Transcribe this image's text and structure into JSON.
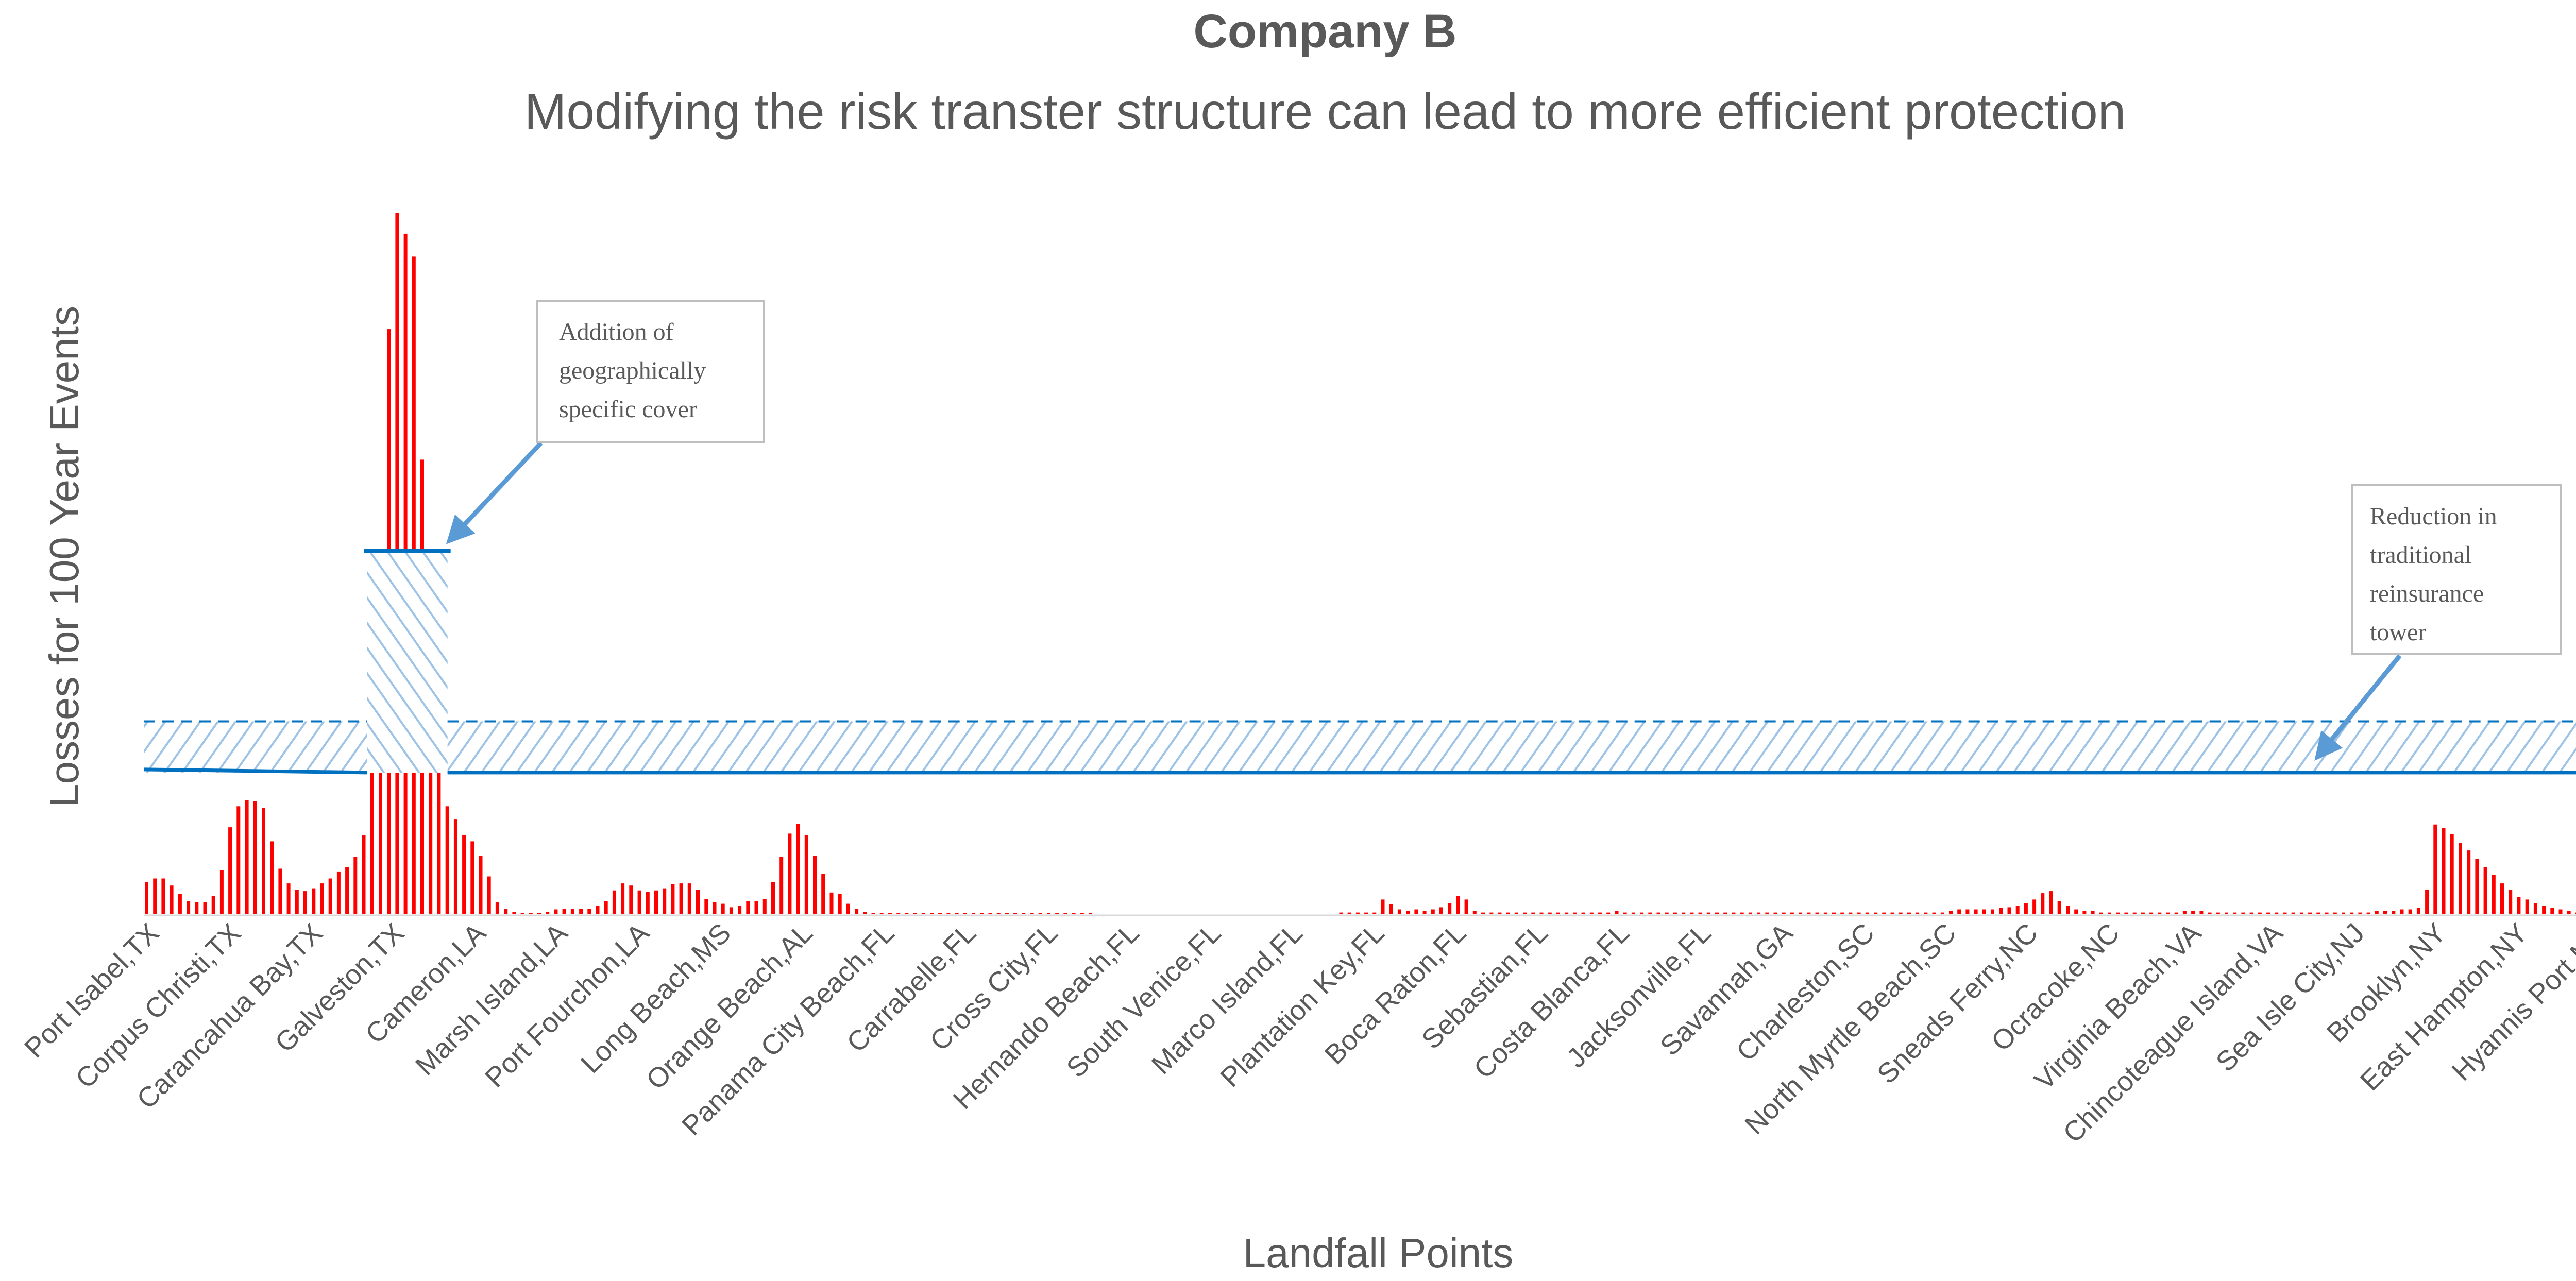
{
  "chart_data": {
    "type": "bar",
    "title": "Company B",
    "subtitle": "Modifying the risk transter structure can lead to more efficient protection",
    "xlabel": "Landfall Points",
    "ylabel": "Losses for 100 Year Events",
    "ylim": [
      0,
      100
    ],
    "grid": false,
    "bar_color": "#ff0000",
    "tick_labels": [
      "Port Isabel,TX",
      "Corpus Christi,TX",
      "Carancahua Bay,TX",
      "Galveston,TX",
      "Cameron,LA",
      "Marsh Island,LA",
      "Port Fourchon,LA",
      "Long Beach,MS",
      "Orange Beach,AL",
      "Panama City Beach,FL",
      "Carrabelle,FL",
      "Cross City,FL",
      "Hernando Beach,FL",
      "South Venice,FL",
      "Marco Island,FL",
      "Plantation Key,FL",
      "Boca Raton,FL",
      "Sebastian,FL",
      "Costa Blanca,FL",
      "Jacksonville,FL",
      "Savannah,GA",
      "Charleston,SC",
      "North Myrtle Beach,SC",
      "Sneads Ferry,NC",
      "Ocracoke,NC",
      "Virginia Beach,VA",
      "Chincoteague Island,VA",
      "Sea Isle City,NJ",
      "Brooklyn,NY",
      "East Hampton,NY",
      "Hyannis Port,MA"
    ],
    "values": [
      4.6,
      5.1,
      5.1,
      4.1,
      2.9,
      1.9,
      1.7,
      1.7,
      2.6,
      6.3,
      12.4,
      15.4,
      16.3,
      16.1,
      15.2,
      10.4,
      6.5,
      4.4,
      3.5,
      3.3,
      3.7,
      4.4,
      5.1,
      6.1,
      6.7,
      8.2,
      11.3,
      25,
      40,
      83.4,
      100,
      97,
      93.8,
      64.8,
      45,
      30,
      15.4,
      13.5,
      11.3,
      10.4,
      8.3,
      5.4,
      1.7,
      0.8,
      0.3,
      0.2,
      0.2,
      0.2,
      0.3,
      0.7,
      0.8,
      0.8,
      0.8,
      0.8,
      1.2,
      1.9,
      3.4,
      4.4,
      4.1,
      3.4,
      3.2,
      3.4,
      3.7,
      4.3,
      4.4,
      4.4,
      3.5,
      2.2,
      1.7,
      1.5,
      1.0,
      1.2,
      1.9,
      1.9,
      2.2,
      4.6,
      8.2,
      11.5,
      12.9,
      11.3,
      8.3,
      5.8,
      3.1,
      2.9,
      1.5,
      0.8,
      0.3,
      0.2,
      0.2,
      0.2,
      0.2,
      0.2,
      0.2,
      0.2,
      0.2,
      0.2,
      0.2,
      0.2,
      0.2,
      0.2,
      0.2,
      0.2,
      0.2,
      0.2,
      0.2,
      0.2,
      0.2,
      0.2,
      0.2,
      0.2,
      0.2,
      0.2,
      0.2,
      0.2,
      0,
      0,
      0,
      0,
      0,
      0,
      0,
      0,
      0,
      0,
      0,
      0,
      0,
      0,
      0,
      0,
      0,
      0,
      0,
      0,
      0,
      0,
      0,
      0,
      0,
      0,
      0,
      0,
      0,
      0.25,
      0.25,
      0.25,
      0.25,
      0.25,
      2.1,
      1.4,
      0.7,
      0.5,
      0.7,
      0.5,
      0.7,
      1.0,
      1.6,
      2.6,
      2.1,
      0.5,
      0.25,
      0.25,
      0.25,
      0.25,
      0.25,
      0.25,
      0.25,
      0.25,
      0.25,
      0.25,
      0.25,
      0.25,
      0.25,
      0.25,
      0.25,
      0.25,
      0.5,
      0.25,
      0.25,
      0.25,
      0.25,
      0.25,
      0.25,
      0.25,
      0.25,
      0.25,
      0.25,
      0.25,
      0.25,
      0.25,
      0.25,
      0.25,
      0.25,
      0.25,
      0.25,
      0.25,
      0.25,
      0.25,
      0.25,
      0.25,
      0.25,
      0.25,
      0.25,
      0.25,
      0.25,
      0.25,
      0.25,
      0.25,
      0.25,
      0.25,
      0.25,
      0.25,
      0.25,
      0.25,
      0.25,
      0.25,
      0.5,
      0.7,
      0.7,
      0.7,
      0.7,
      0.7,
      0.9,
      1.0,
      1.2,
      1.6,
      2.1,
      3.0,
      3.3,
      1.9,
      1.2,
      0.7,
      0.5,
      0.5,
      0.25,
      0.25,
      0.25,
      0.25,
      0.25,
      0.25,
      0.25,
      0.25,
      0.25,
      0.25,
      0.5,
      0.5,
      0.5,
      0.25,
      0.25,
      0.25,
      0.25,
      0.25,
      0.25,
      0.25,
      0.25,
      0.25,
      0.25,
      0.25,
      0.25,
      0.25,
      0.25,
      0.25,
      0.25,
      0.25,
      0.25,
      0.25,
      0.25,
      0.5,
      0.5,
      0.5,
      0.7,
      0.7,
      0.9,
      3.5,
      12.8,
      12.3,
      11.4,
      10.2,
      9.1,
      7.9,
      6.7,
      5.6,
      4.4,
      3.5,
      2.5,
      2.1,
      1.6,
      1.2,
      0.9,
      0.7,
      0.5,
      0.25,
      0.25,
      0.25,
      0.25,
      0.25
    ],
    "reference_lines": {
      "retention": 20.2,
      "traditional_tower_top": 27.5,
      "specific_cover_top": 51.8,
      "specific_cover_bar_range": [
        27,
        35
      ]
    },
    "colors": {
      "line": "#0070c0",
      "hatch": "#9dc3e6",
      "arrow": "#5b9bd5"
    },
    "annotations": [
      {
        "lines": [
          "Addition of",
          "geographically",
          "specific cover"
        ]
      },
      {
        "lines": [
          "Reduction in",
          "traditional",
          "reinsurance",
          "tower"
        ]
      }
    ]
  }
}
